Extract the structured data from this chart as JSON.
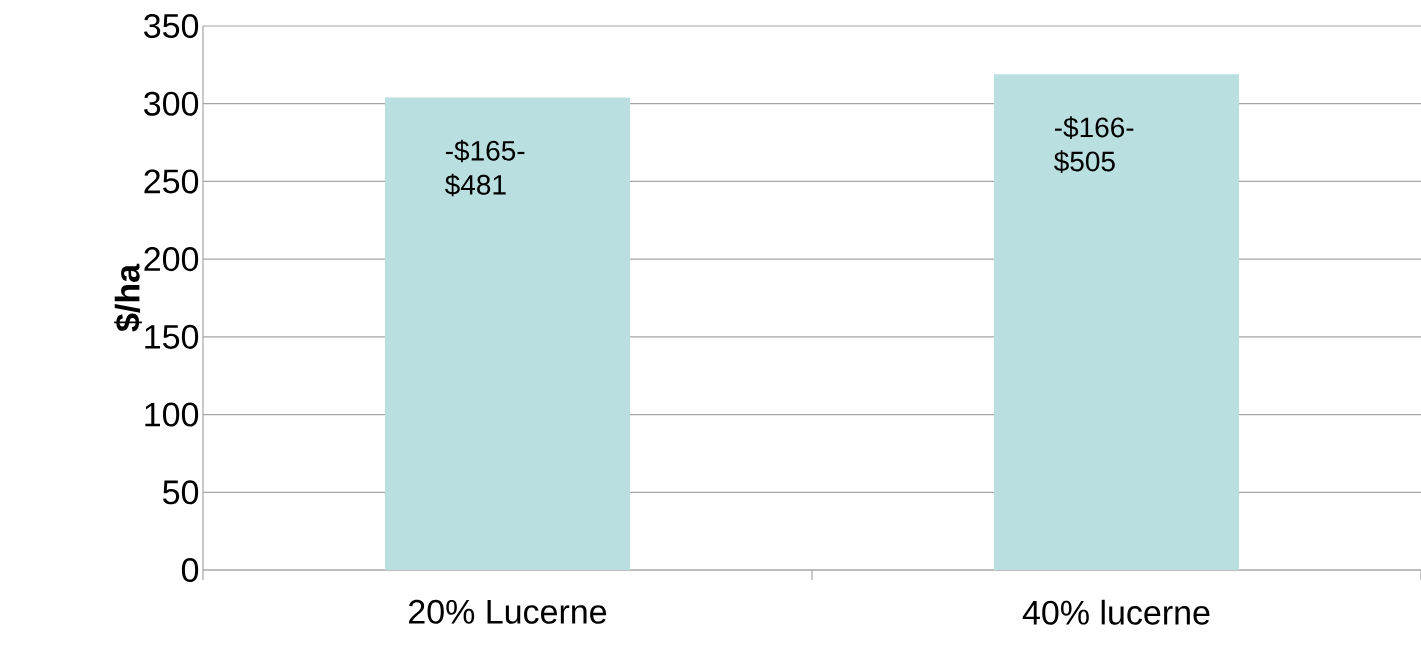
{
  "chart_data": {
    "type": "bar",
    "ylabel": "$/ha",
    "categories": [
      "20% Lucerne",
      "40% lucerne"
    ],
    "values": [
      304,
      319
    ],
    "color": "#b9dfe1",
    "ylim": [
      0,
      350
    ],
    "yticks": [
      0,
      50,
      100,
      150,
      200,
      250,
      300,
      350
    ],
    "grid": "y",
    "annotations": [
      {
        "text": "-$165-$481",
        "x": "20% Lucerne",
        "y": 304
      },
      {
        "text": "-$166-$505",
        "x": "40% lucerne",
        "y": 319
      }
    ]
  }
}
